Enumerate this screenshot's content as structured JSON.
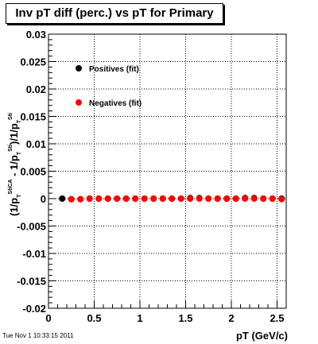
{
  "chart_data": {
    "type": "scatter",
    "title": "Inv pT diff (perc.) vs pT for Primary",
    "xlabel": "pT (GeV/c)",
    "ylabel": "(1/p_T^{StiCA} - 1/p_T^{Sti})/1/p_T^{Sti}",
    "ylabel_parts": {
      "p1": "(1/p",
      "sub1": "T",
      "sup1": "StiCA",
      "p2": " - 1/p",
      "sub2": "T",
      "sup2": "Sti",
      "p3": ")/1/p",
      "sub3": "T",
      "sup3": "Sti"
    },
    "xlim": [
      0,
      2.6
    ],
    "ylim": [
      -0.02,
      0.03
    ],
    "grid": true,
    "legend_position": "top-left",
    "x_ticks": [
      0,
      0.5,
      1,
      1.5,
      2,
      2.5
    ],
    "x_tick_labels": [
      "0",
      "0.5",
      "1",
      "1.5",
      "2",
      "2.5"
    ],
    "y_ticks": [
      -0.02,
      -0.015,
      -0.01,
      -0.005,
      0,
      0.005,
      0.01,
      0.015,
      0.02,
      0.025,
      0.03
    ],
    "y_tick_labels": [
      "-0.02",
      "-0.015",
      "-0.01",
      "-0.005",
      "0",
      "0.005",
      "0.01",
      "0.015",
      "0.02",
      "0.025",
      "0.03"
    ],
    "series": [
      {
        "name": "Positives (fit)",
        "color": "#000000",
        "x": [
          0.15,
          0.25,
          0.35,
          0.45,
          0.55,
          0.65,
          0.75,
          0.85,
          0.95,
          1.05,
          1.15,
          1.25,
          1.35,
          1.45,
          1.55,
          1.65,
          1.75,
          1.85,
          1.95,
          2.05,
          2.15,
          2.25,
          2.35,
          2.45,
          2.55
        ],
        "y": [
          0,
          -0.0001,
          -0.0001,
          0,
          0,
          0,
          0,
          0,
          0,
          0,
          0,
          0,
          0,
          0,
          0.0001,
          0.0001,
          0,
          0,
          0,
          0,
          0.0001,
          0.0001,
          0,
          0,
          0
        ]
      },
      {
        "name": "Negatives (fit)",
        "color": "#ff0000",
        "x": [
          0.25,
          0.35,
          0.45,
          0.55,
          0.65,
          0.75,
          0.85,
          0.95,
          1.05,
          1.15,
          1.25,
          1.35,
          1.45,
          1.55,
          1.65,
          1.75,
          1.85,
          1.95,
          2.05,
          2.15,
          2.25,
          2.35,
          2.45,
          2.55
        ],
        "y": [
          -0.0001,
          -0.0001,
          0,
          0,
          0,
          0,
          0,
          0,
          0,
          0,
          0,
          0,
          0,
          0,
          0,
          0,
          0,
          0,
          0,
          0,
          0,
          0,
          0,
          -0.0001
        ]
      }
    ]
  },
  "timestamp": "Tue Nov  1 10:33:15 2011"
}
